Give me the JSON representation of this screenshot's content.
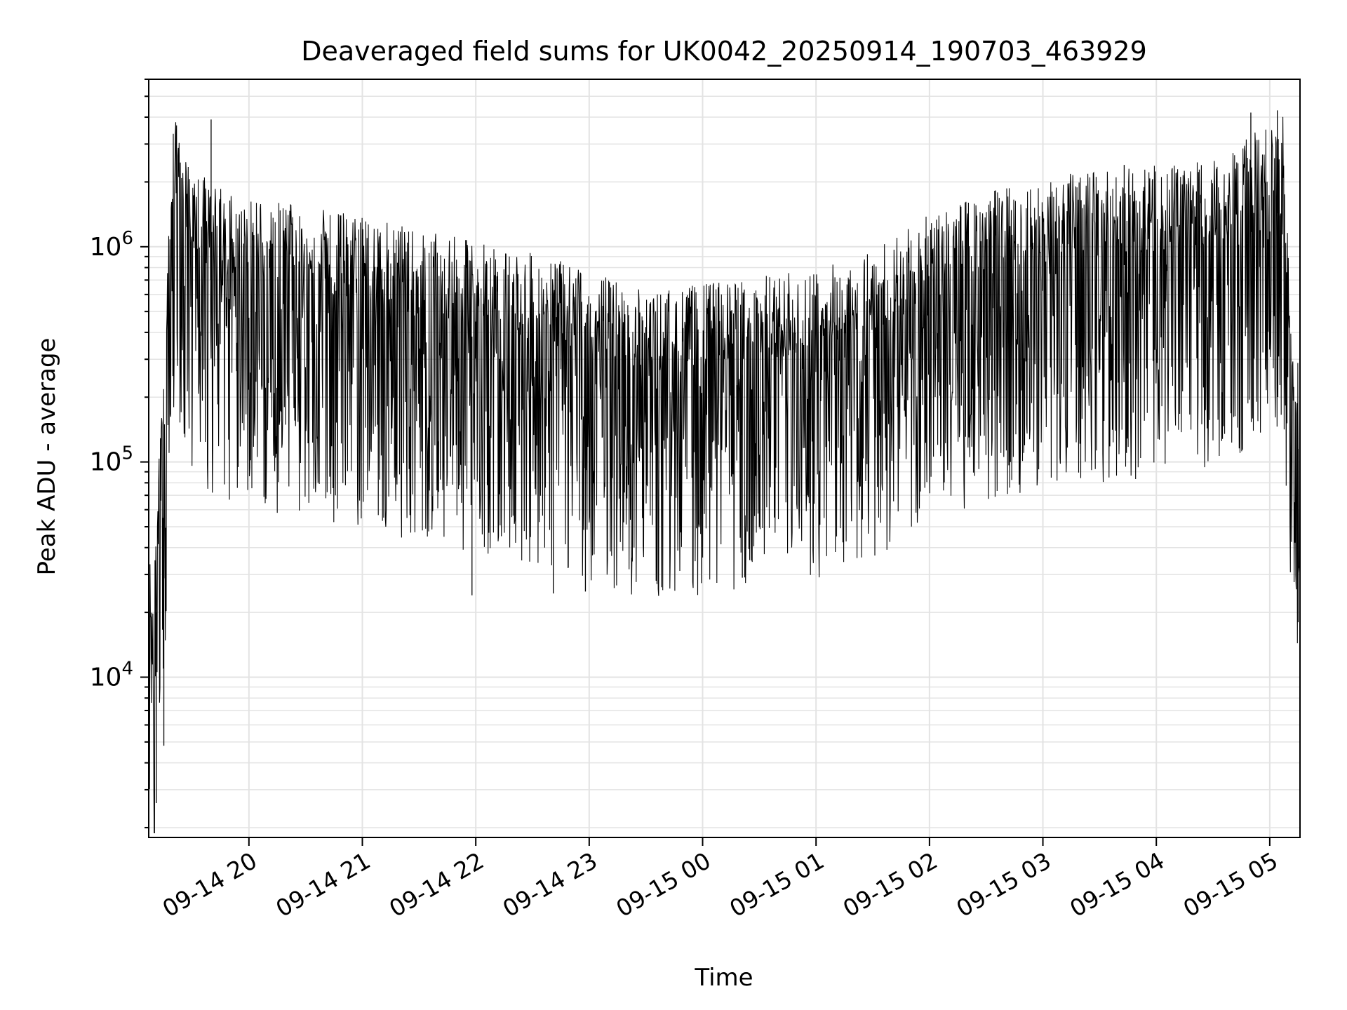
{
  "chart_data": {
    "type": "line",
    "title": "Deaveraged field sums for UK0042_20250914_190703_463929",
    "xlabel": "Time",
    "ylabel": "Peak ADU - average",
    "yscale": "log",
    "xlim": [
      "2025-09-14 19:07",
      "2025-09-15 05:16"
    ],
    "ylim": [
      1800,
      6000000
    ],
    "x_ticks": [
      "09-14 20",
      "09-14 21",
      "09-14 22",
      "09-14 23",
      "09-15 00",
      "09-15 01",
      "09-15 02",
      "09-15 03",
      "09-15 04",
      "09-15 05"
    ],
    "y_ticks": [
      {
        "base": "10",
        "exp": "4",
        "value": 10000
      },
      {
        "base": "10",
        "exp": "5",
        "value": 100000
      },
      {
        "base": "10",
        "exp": "6",
        "value": 1000000
      }
    ],
    "grid": true,
    "line_color": "#000000",
    "series": [
      {
        "time_start": "2025-09-14 19:07",
        "time_step_minutes": 2,
        "points": [
          {
            "x": "2025-09-14 19:07",
            "y": 14000
          },
          {
            "x": "2025-09-14 19:09",
            "y": 9000
          },
          {
            "x": "2025-09-14 19:11",
            "y": 20000
          },
          {
            "x": "2025-09-14 19:13",
            "y": 50000
          },
          {
            "x": "2025-09-14 19:15",
            "y": 80000
          },
          {
            "x": "2025-09-14 19:17",
            "y": 300000
          },
          {
            "x": "2025-09-14 19:19",
            "y": 1200000
          },
          {
            "x": "2025-09-14 19:21",
            "y": 1400000
          },
          {
            "x": "2025-09-14 19:25",
            "y": 1000000
          },
          {
            "x": "2025-09-14 19:40",
            "y": 700000
          },
          {
            "x": "2025-09-14 20:00",
            "y": 600000
          },
          {
            "x": "2025-09-14 20:30",
            "y": 550000
          },
          {
            "x": "2025-09-14 21:00",
            "y": 500000
          },
          {
            "x": "2025-09-14 21:30",
            "y": 420000
          },
          {
            "x": "2025-09-14 22:00",
            "y": 380000
          },
          {
            "x": "2025-09-14 22:30",
            "y": 330000
          },
          {
            "x": "2025-09-14 23:00",
            "y": 280000
          },
          {
            "x": "2025-09-14 23:30",
            "y": 220000
          },
          {
            "x": "2025-09-15 00:00",
            "y": 240000
          },
          {
            "x": "2025-09-15 00:30",
            "y": 260000
          },
          {
            "x": "2025-09-15 01:00",
            "y": 280000
          },
          {
            "x": "2025-09-15 01:30",
            "y": 350000
          },
          {
            "x": "2025-09-15 02:00",
            "y": 500000
          },
          {
            "x": "2025-09-15 02:30",
            "y": 650000
          },
          {
            "x": "2025-09-15 03:00",
            "y": 750000
          },
          {
            "x": "2025-09-15 03:30",
            "y": 800000
          },
          {
            "x": "2025-09-15 04:00",
            "y": 850000
          },
          {
            "x": "2025-09-15 04:30",
            "y": 900000
          },
          {
            "x": "2025-09-15 04:58",
            "y": 1300000
          },
          {
            "x": "2025-09-15 05:07",
            "y": 1500000
          },
          {
            "x": "2025-09-15 05:11",
            "y": 200000
          },
          {
            "x": "2025-09-15 05:16",
            "y": 100000
          }
        ],
        "spikes": [
          {
            "x": "2025-09-14 19:11",
            "y": 2600
          },
          {
            "x": "2025-09-14 19:15",
            "y": 4800
          },
          {
            "x": "2025-09-14 19:40",
            "y": 3900000
          },
          {
            "x": "2025-09-14 21:58",
            "y": 24000
          },
          {
            "x": "2025-09-14 22:41",
            "y": 24500
          },
          {
            "x": "2025-09-14 22:58",
            "y": 25000
          },
          {
            "x": "2025-09-15 00:21",
            "y": 29000
          },
          {
            "x": "2025-09-15 03:43",
            "y": 2400000
          },
          {
            "x": "2025-09-15 04:50",
            "y": 4200000
          },
          {
            "x": "2025-09-15 05:04",
            "y": 4300000
          },
          {
            "x": "2025-09-15 05:15",
            "y": 18000
          }
        ]
      }
    ]
  }
}
